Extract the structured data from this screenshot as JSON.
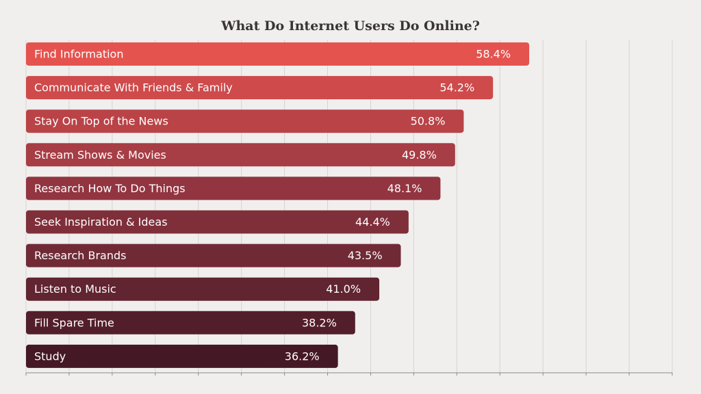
{
  "chart_data": {
    "type": "bar",
    "orientation": "horizontal",
    "title": "What Do Internet Users Do Online?",
    "categories": [
      "Find Information",
      "Communicate With Friends & Family",
      "Stay On Top of the News",
      "Stream Shows & Movies",
      "Research How To Do Things",
      "Seek Inspiration & Ideas",
      "Research Brands",
      "Listen to Music",
      "Fill Spare Time",
      "Study"
    ],
    "values": [
      58.4,
      54.2,
      50.8,
      49.8,
      48.1,
      44.4,
      43.5,
      41.0,
      38.2,
      36.2
    ],
    "value_labels": [
      "58.4%",
      "54.2%",
      "50.8%",
      "49.8%",
      "48.1%",
      "44.4%",
      "43.5%",
      "41.0%",
      "38.2%",
      "36.2%"
    ],
    "colors": [
      "#e5534f",
      "#cf4a4b",
      "#b94347",
      "#a73d45",
      "#923540",
      "#7f2f3a",
      "#702a36",
      "#612431",
      "#531e2b",
      "#441824"
    ],
    "xlim": [
      0,
      75
    ],
    "xticks": [
      0,
      5,
      10,
      15,
      20,
      25,
      30,
      35,
      40,
      45,
      50,
      55,
      60,
      65,
      70,
      75
    ],
    "grid": true
  }
}
